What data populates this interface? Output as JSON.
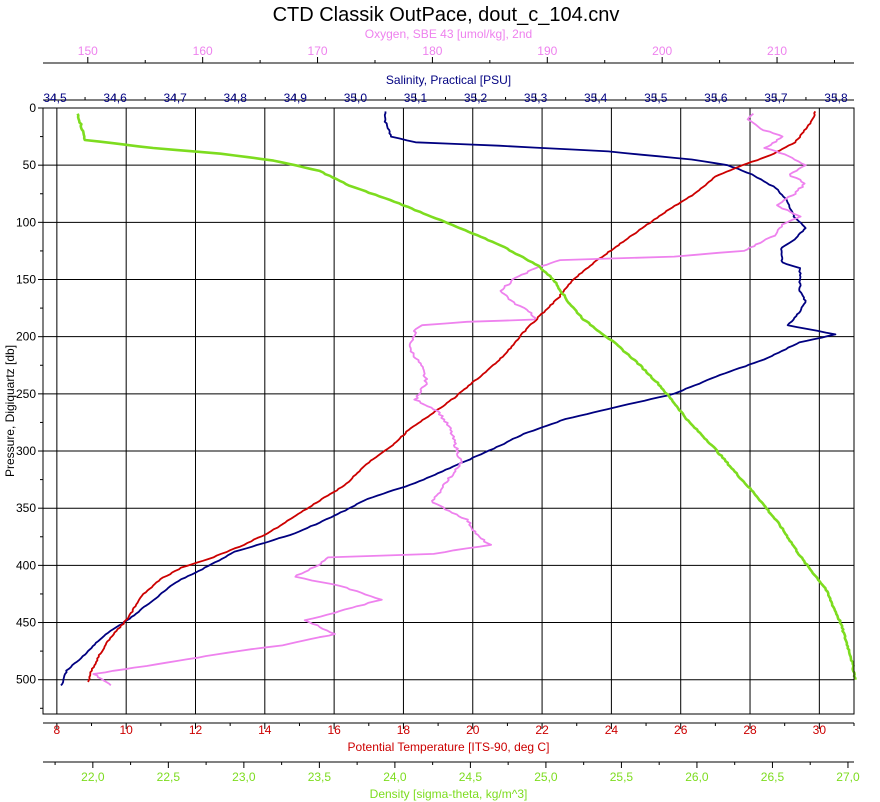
{
  "chart_data": {
    "type": "line",
    "title": "CTD Classik OutPace, dout_c_104.cnv",
    "grid": true,
    "y_axis": {
      "label": "Pressure, Digiquartz [db]",
      "range": [
        0,
        530
      ],
      "inverted": true,
      "ticks": [
        "0",
        "50",
        "100",
        "150",
        "200",
        "250",
        "300",
        "350",
        "400",
        "450",
        "500"
      ]
    },
    "x_axes": [
      {
        "id": "oxygen",
        "position": "top-outer",
        "label": "Oxygen, SBE 43 [umol/kg], 2nd",
        "color": "#ee82ee",
        "range": [
          146.1,
          216.7
        ],
        "ticks": [
          "150",
          "160",
          "170",
          "180",
          "190",
          "200",
          "210"
        ]
      },
      {
        "id": "salinity",
        "position": "top-inner",
        "label": "Salinity, Practical [PSU]",
        "color": "#000080",
        "range": [
          34.48,
          35.83
        ],
        "ticks": [
          "34,5",
          "34,6",
          "34,7",
          "34,8",
          "34,9",
          "35,0",
          "35,1",
          "35,2",
          "35,3",
          "35,4",
          "35,5",
          "35,6",
          "35,7",
          "35,8"
        ]
      },
      {
        "id": "temperature",
        "position": "bottom-inner",
        "label": "Potential Temperature [ITS-90, deg C]",
        "color": "#cc0000",
        "range": [
          7.6,
          31.0
        ],
        "ticks": [
          "8",
          "10",
          "12",
          "14",
          "16",
          "18",
          "20",
          "22",
          "24",
          "26",
          "28",
          "30"
        ]
      },
      {
        "id": "density",
        "position": "bottom-outer",
        "label": "Density [sigma-theta, kg/m^3]",
        "color": "#7ddc1f",
        "range": [
          21.67,
          27.04
        ],
        "ticks": [
          "22,0",
          "22,5",
          "23,0",
          "23,5",
          "24,0",
          "24,5",
          "25,0",
          "25,5",
          "26,0",
          "26,5",
          "27,0"
        ]
      }
    ],
    "series": [
      {
        "axis": "salinity",
        "color": "#000080",
        "points": [
          [
            35.05,
            3
          ],
          [
            35.05,
            12
          ],
          [
            35.06,
            25
          ],
          [
            35.1,
            30
          ],
          [
            35.24,
            33
          ],
          [
            35.42,
            38
          ],
          [
            35.56,
            45
          ],
          [
            35.62,
            50
          ],
          [
            35.66,
            58
          ],
          [
            35.7,
            70
          ],
          [
            35.72,
            82
          ],
          [
            35.73,
            95
          ],
          [
            35.75,
            105
          ],
          [
            35.73,
            115
          ],
          [
            35.71,
            122
          ],
          [
            35.71,
            135
          ],
          [
            35.74,
            140
          ],
          [
            35.74,
            160
          ],
          [
            35.75,
            170
          ],
          [
            35.73,
            185
          ],
          [
            35.72,
            190
          ],
          [
            35.8,
            198
          ],
          [
            35.74,
            205
          ],
          [
            35.68,
            220
          ],
          [
            35.6,
            235
          ],
          [
            35.53,
            250
          ],
          [
            35.43,
            262
          ],
          [
            35.35,
            272
          ],
          [
            35.28,
            285
          ],
          [
            35.23,
            298
          ],
          [
            35.17,
            312
          ],
          [
            35.1,
            328
          ],
          [
            35.02,
            342
          ],
          [
            34.96,
            358
          ],
          [
            34.9,
            372
          ],
          [
            34.8,
            388
          ],
          [
            34.75,
            402
          ],
          [
            34.7,
            415
          ],
          [
            34.66,
            432
          ],
          [
            34.62,
            448
          ],
          [
            34.58,
            462
          ],
          [
            34.55,
            478
          ],
          [
            34.52,
            492
          ],
          [
            34.51,
            505
          ]
        ]
      },
      {
        "axis": "temperature",
        "color": "#cc0000",
        "points": [
          [
            29.9,
            3
          ],
          [
            29.7,
            15
          ],
          [
            29.3,
            30
          ],
          [
            28.7,
            40
          ],
          [
            27.8,
            50
          ],
          [
            27.0,
            60
          ],
          [
            26.4,
            75
          ],
          [
            25.6,
            90
          ],
          [
            24.9,
            105
          ],
          [
            24.2,
            120
          ],
          [
            23.5,
            135
          ],
          [
            22.9,
            150
          ],
          [
            22.5,
            165
          ],
          [
            22.0,
            180
          ],
          [
            21.5,
            195
          ],
          [
            21.1,
            210
          ],
          [
            20.6,
            225
          ],
          [
            20.0,
            240
          ],
          [
            19.4,
            255
          ],
          [
            18.7,
            270
          ],
          [
            18.2,
            280
          ],
          [
            17.7,
            295
          ],
          [
            17.0,
            310
          ],
          [
            16.3,
            330
          ],
          [
            15.5,
            345
          ],
          [
            14.8,
            358
          ],
          [
            14.2,
            370
          ],
          [
            13.4,
            382
          ],
          [
            12.5,
            393
          ],
          [
            11.6,
            402
          ],
          [
            11.0,
            412
          ],
          [
            10.5,
            425
          ],
          [
            10.0,
            448
          ],
          [
            9.5,
            465
          ],
          [
            9.2,
            480
          ],
          [
            9.0,
            492
          ],
          [
            8.9,
            502
          ]
        ]
      },
      {
        "axis": "oxygen",
        "color": "#ee82ee",
        "points": [
          [
            208.0,
            5
          ],
          [
            207.5,
            10
          ],
          [
            208.5,
            18
          ],
          [
            210.5,
            25
          ],
          [
            209.0,
            35
          ],
          [
            211.0,
            42
          ],
          [
            212.5,
            50
          ],
          [
            211.0,
            58
          ],
          [
            212.5,
            66
          ],
          [
            211.5,
            75
          ],
          [
            210.0,
            85
          ],
          [
            212.0,
            95
          ],
          [
            210.5,
            102
          ],
          [
            210.0,
            110
          ],
          [
            208.5,
            118
          ],
          [
            207.0,
            125
          ],
          [
            201.0,
            130
          ],
          [
            191.0,
            133
          ],
          [
            189.0,
            140
          ],
          [
            187.0,
            150
          ],
          [
            186.0,
            160
          ],
          [
            187.0,
            170
          ],
          [
            188.5,
            178
          ],
          [
            189.0,
            185
          ],
          [
            183.0,
            187
          ],
          [
            179.0,
            190
          ],
          [
            178.5,
            195
          ],
          [
            178.0,
            210
          ],
          [
            179.0,
            225
          ],
          [
            179.5,
            240
          ],
          [
            178.5,
            255
          ],
          [
            180.5,
            265
          ],
          [
            181.5,
            280
          ],
          [
            182.0,
            295
          ],
          [
            182.5,
            310
          ],
          [
            181.0,
            330
          ],
          [
            180.0,
            345
          ],
          [
            183.0,
            360
          ],
          [
            184.0,
            375
          ],
          [
            185.0,
            382
          ],
          [
            180.0,
            390
          ],
          [
            171.0,
            393
          ],
          [
            170.0,
            400
          ],
          [
            168.0,
            410
          ],
          [
            172.0,
            418
          ],
          [
            175.5,
            430
          ],
          [
            172.0,
            440
          ],
          [
            169.0,
            448
          ],
          [
            171.5,
            460
          ],
          [
            167.0,
            470
          ],
          [
            163.0,
            475
          ],
          [
            155.0,
            488
          ],
          [
            150.5,
            495
          ],
          [
            152.0,
            505
          ]
        ]
      },
      {
        "axis": "density",
        "color": "#7ddc1f",
        "points": [
          [
            21.9,
            5
          ],
          [
            21.95,
            28
          ],
          [
            22.4,
            35
          ],
          [
            22.85,
            40
          ],
          [
            23.2,
            46
          ],
          [
            23.5,
            55
          ],
          [
            23.7,
            68
          ],
          [
            24.0,
            82
          ],
          [
            24.3,
            98
          ],
          [
            24.7,
            120
          ],
          [
            24.95,
            138
          ],
          [
            25.05,
            150
          ],
          [
            25.15,
            170
          ],
          [
            25.25,
            185
          ],
          [
            25.45,
            205
          ],
          [
            25.6,
            222
          ],
          [
            25.75,
            242
          ],
          [
            25.85,
            258
          ],
          [
            25.95,
            275
          ],
          [
            26.1,
            295
          ],
          [
            26.25,
            318
          ],
          [
            26.4,
            340
          ],
          [
            26.55,
            365
          ],
          [
            26.7,
            395
          ],
          [
            26.85,
            420
          ],
          [
            26.95,
            450
          ],
          [
            27.02,
            480
          ],
          [
            27.05,
            500
          ]
        ]
      }
    ]
  }
}
